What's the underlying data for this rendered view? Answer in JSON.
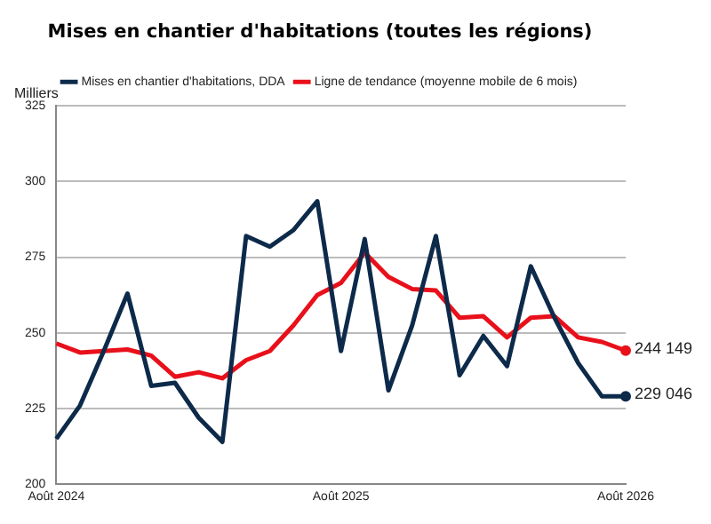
{
  "chart_data": {
    "type": "line",
    "title": "Mises en chantier d'habitations (toutes les régions)",
    "ylabel": "Milliers",
    "categories": [
      "Août 2024",
      null,
      null,
      null,
      null,
      null,
      null,
      null,
      null,
      null,
      null,
      null,
      "Août 2025",
      null,
      null,
      null,
      null,
      null,
      null,
      null,
      null,
      null,
      null,
      null,
      "Août 2026"
    ],
    "series": [
      {
        "name": "Mises en chantier d'habitations, DDA",
        "color": "#0d2a4a",
        "values": [
          215,
          226,
          244,
          263,
          232.5,
          233.5,
          222,
          214,
          282,
          278.5,
          284,
          293.5,
          244,
          281,
          231,
          252.5,
          282,
          236,
          249,
          239,
          272,
          255,
          240,
          229,
          229.046
        ]
      },
      {
        "name": "Ligne de tendance (moyenne mobile de 6 mois)",
        "color": "#e8101a",
        "values": [
          246.5,
          243.5,
          244,
          244.5,
          242.5,
          235.5,
          237,
          235,
          241,
          244,
          252.5,
          262.5,
          266.5,
          276.5,
          268.5,
          264.5,
          264,
          255,
          255.5,
          248.5,
          255,
          255.5,
          248.5,
          247,
          244.149
        ]
      }
    ],
    "annotations": [
      {
        "text": "244 149",
        "x": "Août 2026",
        "y": 244.149
      },
      {
        "text": "229 046",
        "x": "Août 2026",
        "y": 229.046
      }
    ],
    "ylim": [
      200,
      325
    ],
    "yticks": [
      200,
      225,
      250,
      275,
      300,
      325
    ],
    "grid": "y",
    "legend": "top",
    "marker": "none",
    "line_style": "solid"
  }
}
